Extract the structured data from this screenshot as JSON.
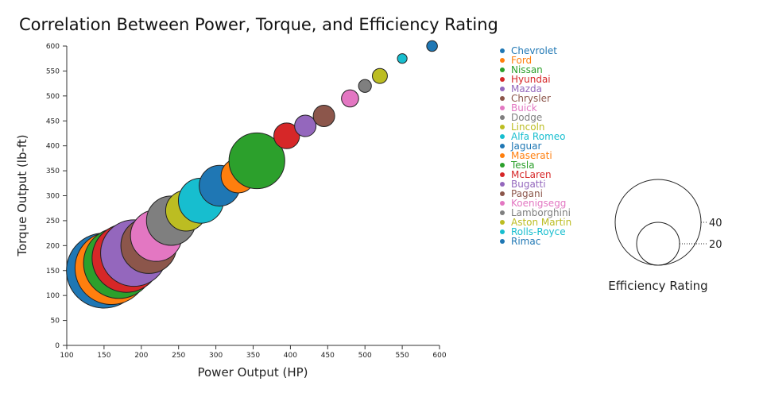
{
  "chart_data": {
    "type": "scatter",
    "title": "Correlation Between Power, Torque, and Efficiency Rating",
    "xlabel": "Power Output (HP)",
    "ylabel": "Torque Output (lb-ft)",
    "xlim": [
      100,
      600
    ],
    "ylim": [
      0,
      600
    ],
    "x_ticks": [
      100,
      150,
      200,
      250,
      300,
      350,
      400,
      450,
      500,
      550,
      600
    ],
    "y_ticks": [
      0,
      50,
      100,
      150,
      200,
      250,
      300,
      350,
      400,
      450,
      500,
      550,
      600
    ],
    "grid": false,
    "legend_position": "top-right",
    "size_legend": {
      "title": "Efficiency Rating",
      "entries": [
        40,
        20
      ]
    },
    "series": [
      {
        "name": "Chevrolet",
        "color": "#1f77b4",
        "x": 150,
        "y": 150,
        "size": 35
      },
      {
        "name": "Ford",
        "color": "#ff7f0e",
        "x": 160,
        "y": 155,
        "size": 34
      },
      {
        "name": "Nissan",
        "color": "#2ca02c",
        "x": 170,
        "y": 165,
        "size": 33
      },
      {
        "name": "Hyundai",
        "color": "#d62728",
        "x": 180,
        "y": 175,
        "size": 32
      },
      {
        "name": "Mazda",
        "color": "#9467bd",
        "x": 190,
        "y": 185,
        "size": 31
      },
      {
        "name": "Chrysler",
        "color": "#8c564b",
        "x": 210,
        "y": 200,
        "size": 26
      },
      {
        "name": "Buick",
        "color": "#e377c2",
        "x": 220,
        "y": 220,
        "size": 24
      },
      {
        "name": "Dodge",
        "color": "#7f7f7f",
        "x": 240,
        "y": 250,
        "size": 23
      },
      {
        "name": "Lincoln",
        "color": "#bcbd22",
        "x": 260,
        "y": 270,
        "size": 19
      },
      {
        "name": "Alfa Romeo",
        "color": "#17becf",
        "x": 280,
        "y": 290,
        "size": 21
      },
      {
        "name": "Jaguar",
        "color": "#1f77b4",
        "x": 305,
        "y": 320,
        "size": 19
      },
      {
        "name": "Maserati",
        "color": "#ff7f0e",
        "x": 330,
        "y": 340,
        "size": 16
      },
      {
        "name": "Tesla",
        "color": "#2ca02c",
        "x": 355,
        "y": 370,
        "size": 26
      },
      {
        "name": "McLaren",
        "color": "#d62728",
        "x": 395,
        "y": 420,
        "size": 12
      },
      {
        "name": "Bugatti",
        "color": "#9467bd",
        "x": 420,
        "y": 440,
        "size": 10
      },
      {
        "name": "Pagani",
        "color": "#8c564b",
        "x": 445,
        "y": 460,
        "size": 10
      },
      {
        "name": "Koenigsegg",
        "color": "#e377c2",
        "x": 480,
        "y": 495,
        "size": 8
      },
      {
        "name": "Lamborghini",
        "color": "#7f7f7f",
        "x": 500,
        "y": 520,
        "size": 6
      },
      {
        "name": "Aston Martin",
        "color": "#bcbd22",
        "x": 520,
        "y": 540,
        "size": 7
      },
      {
        "name": "Rolls-Royce",
        "color": "#17becf",
        "x": 550,
        "y": 575,
        "size": 4.5
      },
      {
        "name": "Rimac",
        "color": "#1f77b4",
        "x": 590,
        "y": 600,
        "size": 5
      }
    ]
  }
}
